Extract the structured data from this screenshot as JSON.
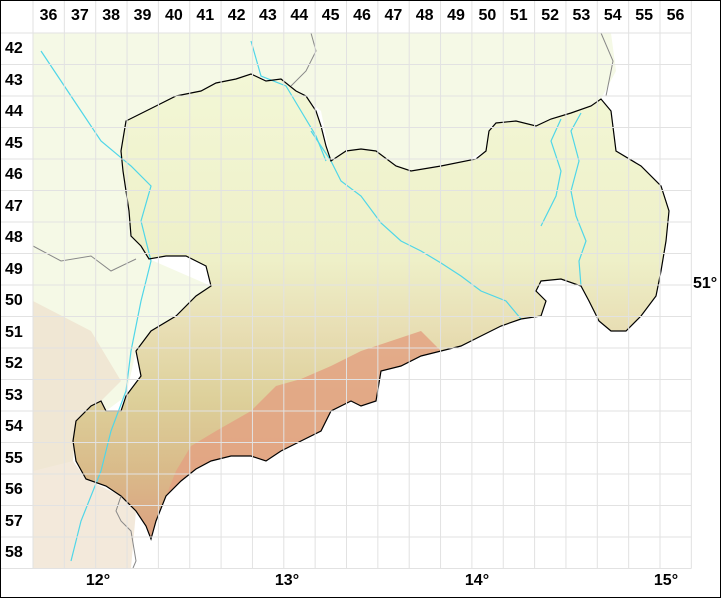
{
  "grid": {
    "columns": [
      "36",
      "37",
      "38",
      "39",
      "40",
      "41",
      "42",
      "43",
      "44",
      "45",
      "46",
      "47",
      "48",
      "49",
      "50",
      "51",
      "52",
      "53",
      "54",
      "55",
      "56"
    ],
    "rows": [
      "42",
      "43",
      "44",
      "45",
      "46",
      "47",
      "48",
      "49",
      "50",
      "51",
      "52",
      "53",
      "54",
      "55",
      "56",
      "57",
      "58"
    ]
  },
  "longitude_labels": [
    "12°",
    "13°",
    "14°",
    "15°"
  ],
  "latitude_labels": [
    "51°"
  ],
  "colors": {
    "lowland": "#f1f5d2",
    "midland": "#e6dcb0",
    "highland": "#e0a98a",
    "peaks": "#e49a80",
    "river": "#4fd6e8",
    "border": "#000000",
    "outside_north": "#f5f9e6",
    "grid": "#e2e2e2"
  }
}
